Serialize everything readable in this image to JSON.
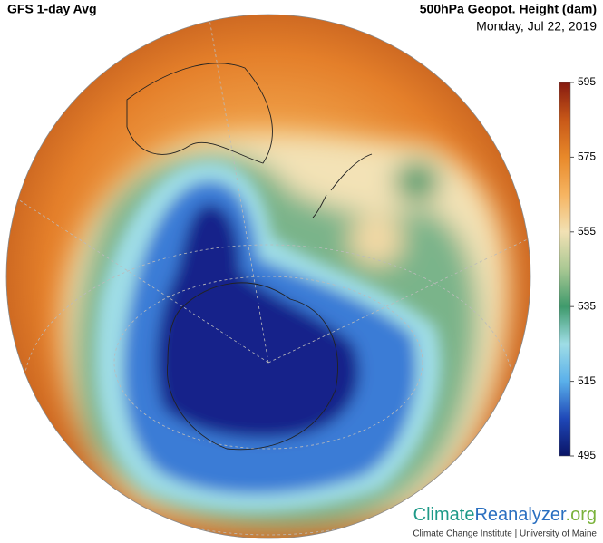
{
  "header": {
    "left": "GFS 1-day Avg",
    "right": "500hPa Geopot. Height (dam)",
    "date": "Monday, Jul 22, 2019"
  },
  "colorbar": {
    "lim": [
      495,
      595
    ],
    "ticks": [
      495,
      515,
      535,
      555,
      575,
      595
    ]
  },
  "logo": {
    "part1": "Climate",
    "part2": "Reanalyzer",
    "part3": ".org",
    "subtitle": "Climate Change Institute | University of Maine"
  }
}
